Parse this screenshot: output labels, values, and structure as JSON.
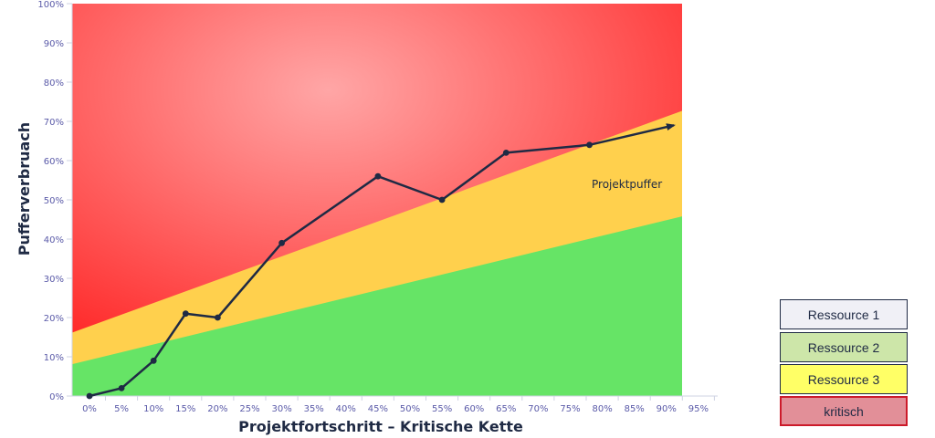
{
  "chart_data": {
    "type": "line",
    "xlabel": "Projektfortschritt – Kritische Kette",
    "ylabel": "Pufferverbruach",
    "x_ticks": [
      "0%",
      "5%",
      "10%",
      "15%",
      "20%",
      "25%",
      "30%",
      "35%",
      "40%",
      "45%",
      "50%",
      "55%",
      "60%",
      "65%",
      "70%",
      "75%",
      "80%",
      "85%",
      "90%",
      "95%"
    ],
    "y_ticks": [
      "0%",
      "10%",
      "20%",
      "30%",
      "40%",
      "50%",
      "60%",
      "70%",
      "80%",
      "90%",
      "100%"
    ],
    "xlim": [
      0,
      95
    ],
    "ylim": [
      0,
      100
    ],
    "grid": false,
    "zones": [
      {
        "name": "green",
        "color": "#66e466",
        "from": [
          0,
          0
        ],
        "boundary": [
          [
            -3,
            8
          ],
          [
            93,
            46
          ]
        ]
      },
      {
        "name": "yellow",
        "color": "#ffd04d",
        "boundary": [
          [
            -3,
            16
          ],
          [
            93,
            73
          ]
        ]
      },
      {
        "name": "red",
        "color": "#ff2c2c"
      }
    ],
    "series": [
      {
        "values_x": [
          0,
          5,
          10,
          15,
          20,
          30,
          45,
          55,
          65,
          78,
          90
        ],
        "values_y": [
          0,
          2,
          9,
          21,
          20,
          39,
          56,
          50,
          62,
          64,
          69
        ],
        "color": "#1f2a44"
      }
    ],
    "annotations": [
      {
        "text": "Projektpuffer",
        "x": 83,
        "y": 54
      }
    ]
  },
  "legend": [
    {
      "label": "Ressource 1",
      "color": "#f0f0f6"
    },
    {
      "label": "Ressource 2",
      "color": "#cde6a9"
    },
    {
      "label": "Ressource 3",
      "color": "#ffff66"
    },
    {
      "label": "kritisch",
      "color": "#e28f98",
      "border": "#cc1a2a"
    }
  ]
}
